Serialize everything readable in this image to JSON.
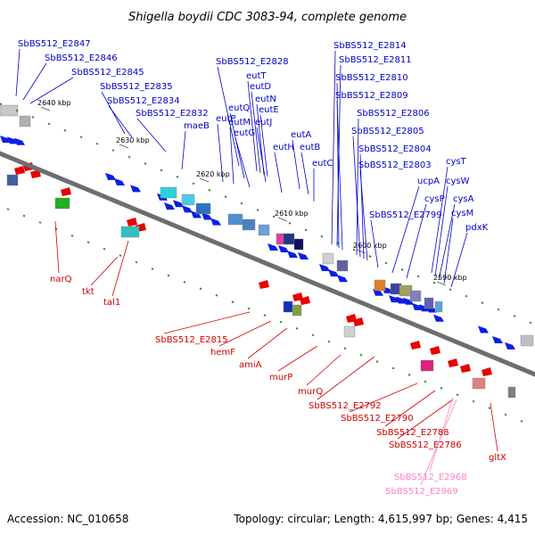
{
  "title": "Shigella boydii CDC 3083-94, complete genome",
  "footer": {
    "accession": "Accession: NC_010658",
    "summary": "Topology: circular; Length: 4,615,997 bp; Genes: 4,415"
  },
  "colors": {
    "forward_label": "#0000c8",
    "reverse_label": "#d00000",
    "pseudo_label": "#ff80c0",
    "forward_gene": "#0a1ee6",
    "reverse_gene": "#e60000",
    "backbone": "#6e6e6e",
    "tick_mark": "#1a9a1a"
  },
  "scale_ticks": [
    "2640 kbp",
    "2630 kbp",
    "2620 kbp",
    "2610 kbp",
    "2600 kbp",
    "2590 kbp"
  ],
  "top_labels": [
    "SbBS512_E2847",
    "SbBS512_E2846",
    "SbBS512_E2845",
    "SbBS512_E2835",
    "SbBS512_E2834",
    "SbBS512_E2832",
    "maeB",
    "SbBS512_E2828",
    "eutT",
    "eutD",
    "eutN",
    "eutQ",
    "eutE",
    "eutP",
    "eutM",
    "eutJ",
    "eutG",
    "eutA",
    "eutH",
    "eutB",
    "eutC",
    "SbBS512_E2814",
    "SbBS512_E2811",
    "SbBS512_E2810",
    "SbBS512_E2809",
    "SbBS512_E2806",
    "SbBS512_E2805",
    "SbBS512_E2804",
    "SbBS512_E2803",
    "cysT",
    "ucpA",
    "cysW",
    "cysP",
    "cysA",
    "SbBS512_E2799",
    "cysM",
    "pdxK"
  ],
  "bottom_labels": [
    "narQ",
    "tkt",
    "tal1",
    "SbBS512_E2815",
    "hemF",
    "amiA",
    "murP",
    "murQ",
    "SbBS512_E2792",
    "SbBS512_E2790",
    "SbBS512_E2788",
    "SbBS512_E2786",
    "gltX"
  ],
  "pseudo_labels": [
    "SbBS512_E2968",
    "SbBS512_E2969"
  ]
}
